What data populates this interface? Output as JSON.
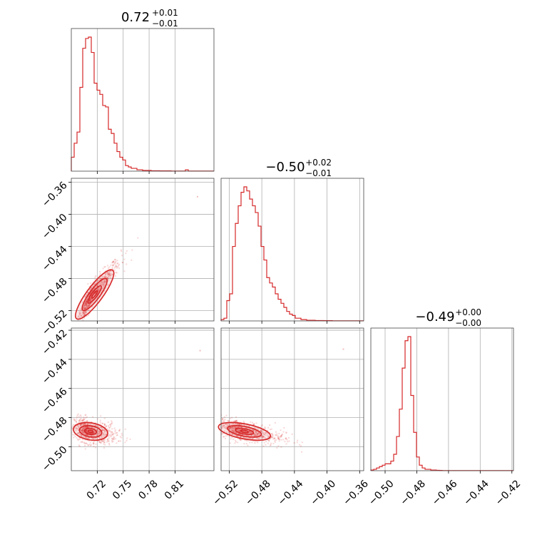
{
  "chart_data": {
    "type": "corner",
    "color": "#d62728",
    "grid": true,
    "parameters": [
      {
        "title_value": "0.72",
        "title_plus": "+0.01",
        "title_minus": "−0.01",
        "range": [
          0.69,
          0.855
        ],
        "ticks": [
          0.72,
          0.75,
          0.78,
          0.81
        ],
        "tick_labels": [
          "0.72",
          "0.75",
          "0.78",
          "0.81"
        ]
      },
      {
        "title_value": "−0.50",
        "title_plus": "+0.02",
        "title_minus": "−0.01",
        "range": [
          -0.53,
          -0.355
        ],
        "ticks": [
          -0.52,
          -0.48,
          -0.44,
          -0.4,
          -0.36
        ],
        "tick_labels": [
          "−0.52",
          "−0.48",
          "−0.44",
          "−0.40",
          "−0.36"
        ]
      },
      {
        "title_value": "−0.49",
        "title_plus": "+0.00",
        "title_minus": "−0.00",
        "range": [
          -0.509,
          -0.419
        ],
        "ticks": [
          -0.5,
          -0.48,
          -0.46,
          -0.44,
          -0.42
        ],
        "tick_labels": [
          "−0.50",
          "−0.48",
          "−0.46",
          "−0.44",
          "−0.42"
        ]
      }
    ],
    "y_axes": {
      "row1": {
        "range": [
          -0.533,
          -0.355
        ],
        "ticks": [
          -0.36,
          -0.4,
          -0.44,
          -0.48,
          -0.52
        ],
        "tick_labels": [
          "−0.36",
          "−0.40",
          "−0.44",
          "−0.48",
          "−0.52"
        ]
      },
      "row2": {
        "range": [
          -0.5165,
          -0.4185
        ],
        "ticks": [
          -0.42,
          -0.44,
          -0.46,
          -0.48,
          -0.5
        ],
        "tick_labels": [
          "−0.42",
          "−0.44",
          "−0.46",
          "−0.48",
          "−0.50"
        ]
      }
    },
    "histograms": [
      {
        "param": 0,
        "bin_start": 0.69,
        "bin_width": 0.0033,
        "counts": [
          0.1,
          0.2,
          0.28,
          0.6,
          0.88,
          0.95,
          0.96,
          0.85,
          0.63,
          0.58,
          0.55,
          0.47,
          0.46,
          0.3,
          0.27,
          0.2,
          0.14,
          0.1,
          0.08,
          0.04,
          0.03,
          0.02,
          0.02,
          0.01,
          0.01,
          0.005,
          0.005,
          0.005,
          0.003,
          0.003,
          0.003,
          0.002,
          0.002,
          0.002,
          0.002,
          0.001,
          0.001,
          0.001,
          0.001,
          0.001,
          0.01,
          0.001,
          0.001,
          0.001,
          0.001,
          0.001,
          0.001,
          0.001,
          0.001,
          0.001
        ]
      },
      {
        "param": 1,
        "bin_start": -0.53,
        "bin_width": 0.0035,
        "counts": [
          0.01,
          0.02,
          0.15,
          0.2,
          0.55,
          0.72,
          0.85,
          0.95,
          0.99,
          0.96,
          0.9,
          0.85,
          0.8,
          0.7,
          0.55,
          0.45,
          0.32,
          0.28,
          0.25,
          0.2,
          0.16,
          0.13,
          0.1,
          0.07,
          0.05,
          0.04,
          0.02,
          0.02,
          0.01,
          0.01,
          0.005,
          0.005,
          0.005,
          0.003,
          0.003,
          0.003,
          0.002,
          0.002,
          0.002,
          0.001,
          0.001,
          0.001,
          0.001,
          0.001,
          0.001,
          0.001,
          0.001,
          0.001,
          0.001,
          0.001
        ]
      },
      {
        "param": 2,
        "bin_start": -0.509,
        "bin_width": 0.0018,
        "counts": [
          0.005,
          0.01,
          0.02,
          0.03,
          0.04,
          0.05,
          0.05,
          0.07,
          0.12,
          0.25,
          0.45,
          0.75,
          0.95,
          0.98,
          0.55,
          0.28,
          0.1,
          0.04,
          0.02,
          0.01,
          0.01,
          0.005,
          0.005,
          0.003,
          0.002,
          0.001,
          0.001,
          0.001,
          0.001,
          0.001,
          0.001,
          0.001,
          0.001,
          0.001,
          0.001,
          0.001,
          0.001,
          0.001,
          0.001,
          0.001,
          0.001,
          0.001,
          0.001,
          0.001,
          0.001,
          0.001,
          0.001,
          0.001,
          0.001,
          0.001
        ]
      }
    ],
    "scatter_panels": [
      {
        "x_param": 0,
        "y_param": 1,
        "center": [
          0.713,
          -0.5
        ],
        "sd": [
          0.0095,
          0.0145
        ],
        "corr": 0.95,
        "outlier": [
          0.836,
          -0.378
        ]
      },
      {
        "x_param": 0,
        "y_param": 2,
        "center": [
          0.71,
          -0.4895
        ],
        "sd": [
          0.009,
          0.0028
        ],
        "corr": -0.3,
        "outlier": [
          0.839,
          -0.434
        ]
      },
      {
        "x_param": 1,
        "y_param": 2,
        "center": [
          -0.505,
          -0.4895
        ],
        "sd": [
          0.0145,
          0.0028
        ],
        "corr": -0.55,
        "outlier": [
          -0.38,
          -0.433
        ]
      }
    ]
  }
}
